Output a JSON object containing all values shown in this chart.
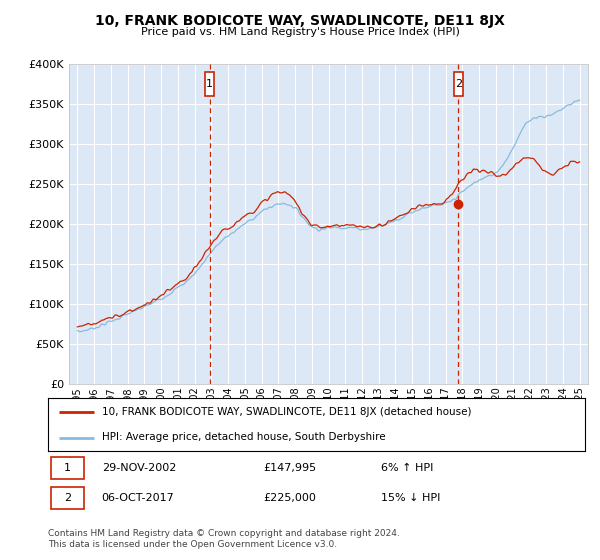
{
  "title": "10, FRANK BODICOTE WAY, SWADLINCOTE, DE11 8JX",
  "subtitle": "Price paid vs. HM Land Registry's House Price Index (HPI)",
  "legend_line1": "10, FRANK BODICOTE WAY, SWADLINCOTE, DE11 8JX (detached house)",
  "legend_line2": "HPI: Average price, detached house, South Derbyshire",
  "transaction1_date": "29-NOV-2002",
  "transaction1_price": 147995,
  "transaction1_label": "6% ↑ HPI",
  "transaction2_date": "06-OCT-2017",
  "transaction2_price": 225000,
  "transaction2_label": "15% ↓ HPI",
  "transaction1_x": 2002.91,
  "transaction2_x": 2017.76,
  "footnote1": "Contains HM Land Registry data © Crown copyright and database right 2024.",
  "footnote2": "This data is licensed under the Open Government Licence v3.0.",
  "ylim": [
    0,
    400000
  ],
  "xlim_start": 1994.5,
  "xlim_end": 2025.5,
  "plot_bg_color": "#dce8f5",
  "grid_color": "#ffffff",
  "red_line_color": "#cc2200",
  "blue_line_color": "#88bbdd",
  "vline_color": "#cc2200",
  "marker_box_color": "#cc2200"
}
